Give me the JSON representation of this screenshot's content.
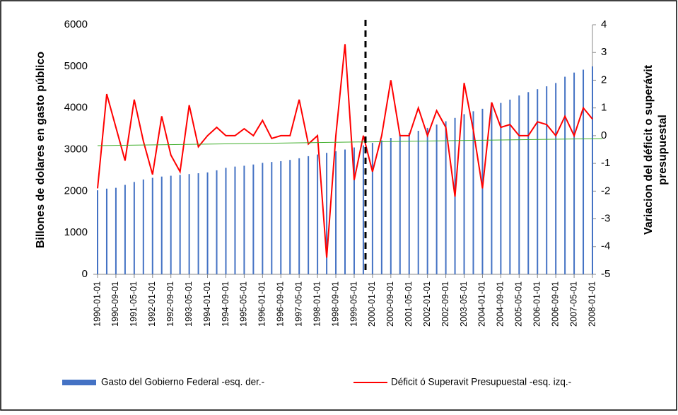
{
  "chart_data": {
    "type": "bar_line",
    "ylabel": "Billones de dolares en gasto público",
    "y2label": [
      "Variacion del déficit o superávit",
      "presupuestal"
    ],
    "categories": [
      "1990-01-01",
      null,
      "1990-09-01",
      null,
      "1991-05-01",
      null,
      "1992-01-01",
      null,
      "1992-09-01",
      null,
      "1993-05-01",
      null,
      "1994-01-01",
      null,
      "1994-09-01",
      null,
      "1995-05-01",
      null,
      "1996-01-01",
      null,
      "1996-09-01",
      null,
      "1997-05-01",
      null,
      "1998-01-01",
      null,
      "1998-09-01",
      null,
      "1999-05-01",
      null,
      "2000-01-01",
      null,
      "2000-09-01",
      null,
      "2001-05-01",
      null,
      "2002-01-01",
      null,
      "2002-09-01",
      null,
      "2003-05-01",
      null,
      "2004-01-01",
      null,
      "2004-09-01",
      null,
      "2005-05-01",
      null,
      "2006-01-01",
      null,
      "2006-09-01",
      null,
      "2007-05-01",
      null,
      "2008-01-01"
    ],
    "series": [
      {
        "name": "Gasto del Gobierno Federal -esq. der.-",
        "color": "#4472c4",
        "kind": "bar",
        "values": [
          2020,
          2060,
          2080,
          2150,
          2220,
          2280,
          2320,
          2350,
          2370,
          2390,
          2410,
          2430,
          2450,
          2500,
          2560,
          2590,
          2610,
          2640,
          2680,
          2700,
          2720,
          2750,
          2790,
          2840,
          2880,
          2920,
          2960,
          3000,
          3050,
          3100,
          3160,
          3220,
          3280,
          3350,
          3400,
          3450,
          3520,
          3600,
          3680,
          3760,
          3850,
          3920,
          3980,
          4050,
          4120,
          4200,
          4300,
          4380,
          4450,
          4520,
          4600,
          4750,
          4850,
          4920,
          5000
        ]
      },
      {
        "name": "Déficit ó Superavit Presupuestal -esq. izq.-",
        "color": "#ff0000",
        "kind": "line",
        "axis": "y2",
        "values": [
          -1.9,
          1.5,
          0.3,
          -0.9,
          1.3,
          -0.2,
          -1.4,
          0.7,
          -0.7,
          -1.3,
          1.1,
          -0.4,
          0,
          0.3,
          0,
          0,
          0.25,
          0,
          0.55,
          -0.1,
          0,
          0,
          1.3,
          -0.3,
          0,
          -4.4,
          0,
          3.3,
          -1.6,
          0,
          -1.3,
          0,
          2.0,
          0,
          0,
          1.0,
          0,
          0.9,
          0.3,
          -2.2,
          1.9,
          0.2,
          -1.9,
          1.2,
          0.3,
          0.4,
          0,
          0,
          0.5,
          0.4,
          0,
          0.7,
          0,
          1.0,
          0.6
        ]
      }
    ],
    "ylim": [
      0,
      6000
    ],
    "yticks": [
      0,
      1000,
      2000,
      3000,
      4000,
      5000,
      6000
    ],
    "y2lim": [
      -5,
      4
    ],
    "y2ticks": [
      -5,
      -4,
      -3,
      -2,
      -1,
      0,
      1,
      2,
      3,
      4
    ]
  }
}
